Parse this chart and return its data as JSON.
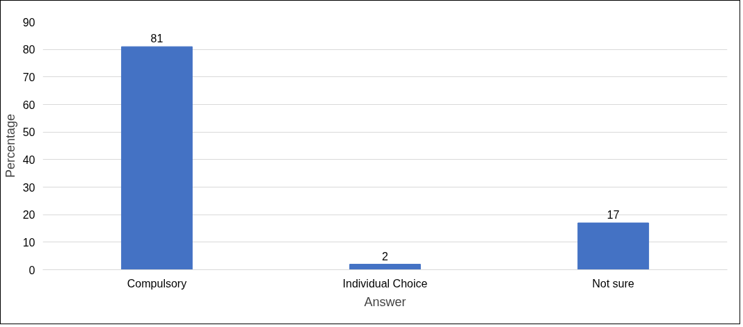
{
  "chart_data": {
    "type": "bar",
    "xlabel": "Answer",
    "ylabel": "Percentage",
    "categories": [
      "Compulsory",
      "Individual Choice",
      "Not sure"
    ],
    "values": [
      81,
      2,
      17
    ],
    "color": "#4472c4",
    "ylim": [
      0,
      90
    ],
    "yticks": [
      0,
      10,
      20,
      30,
      40,
      50,
      60,
      70,
      80,
      90
    ],
    "grid": "y",
    "data_labels": true
  }
}
